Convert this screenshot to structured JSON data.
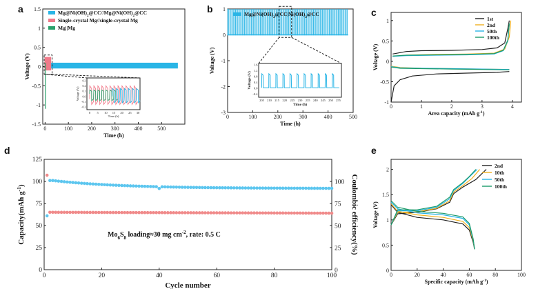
{
  "chart_data": [
    {
      "panel": "a",
      "type": "line",
      "xlabel": "Time (h)",
      "ylabel": "Voltage (V)",
      "xlim": [
        -10,
        600
      ],
      "ylim": [
        -1.5,
        1.5
      ],
      "xticks": [
        0,
        100,
        200,
        300,
        400,
        500
      ],
      "yticks": [
        -1.5,
        -1.0,
        -0.5,
        0.0,
        0.5,
        1.0,
        1.5
      ],
      "series": [
        {
          "name": "Mg@Ni(OH)2@CC//Mg@Ni(OH)2@CC",
          "color": "#29b5e6",
          "x_range": [
            0,
            570
          ],
          "voltage_band": [
            -0.05,
            0.1
          ]
        },
        {
          "name": "Single-crystal Mg//single-crystal Mg",
          "color": "#f07a8a",
          "x_range": [
            0,
            25
          ],
          "voltage_band": [
            -0.1,
            0.25
          ]
        },
        {
          "name": "Mg||Mg",
          "color": "#2aa06a",
          "x_range": [
            0,
            4
          ],
          "voltage_band": [
            -1.1,
            0.1
          ]
        }
      ],
      "inset": {
        "xlabel": "Time (h)",
        "ylabel": "Voltage (V)",
        "xticks": [
          0,
          5,
          10,
          15,
          20,
          25,
          30
        ],
        "yticks": [
          -0.2,
          -0.1,
          0.0,
          0.1,
          0.2,
          0.3
        ]
      }
    },
    {
      "panel": "b",
      "type": "line",
      "xlabel": "Time (h)",
      "ylabel": "Voltage (V)",
      "xlim": [
        0,
        500
      ],
      "ylim": [
        -3,
        1
      ],
      "xticks": [
        0,
        100,
        200,
        300,
        400,
        500
      ],
      "yticks": [
        -3,
        -2,
        -1,
        0,
        1
      ],
      "series": [
        {
          "name": "Mg@Ni(OH)2@CC|Ni(OH)2@CC",
          "color": "#29b5e6",
          "x_range": [
            0,
            480
          ],
          "voltage_band": [
            0.0,
            1.0
          ]
        }
      ],
      "inset": {
        "xlabel": "Time (h)",
        "ylabel": "Voltage (V)",
        "xticks": [
          205,
          210,
          215,
          220,
          225,
          230,
          235,
          240,
          245,
          250,
          255
        ],
        "yticks": [
          -0.4,
          0.0,
          0.4,
          0.8,
          1.2,
          1.6
        ]
      }
    },
    {
      "panel": "c",
      "type": "line",
      "xlabel": "Area capacity (mAh g⁻¹)",
      "ylabel": "Voltage (V)",
      "xlim": [
        0,
        4.3
      ],
      "ylim": [
        -1,
        1.2
      ],
      "xticks": [
        0,
        1,
        2,
        3,
        4
      ],
      "yticks": [
        -1.0,
        -0.5,
        0.0,
        0.5,
        1.0
      ],
      "series": [
        {
          "name": "1st",
          "color": "#222222",
          "charge": [
            [
              0.05,
              0.18
            ],
            [
              0.5,
              0.24
            ],
            [
              1,
              0.26
            ],
            [
              2,
              0.27
            ],
            [
              3,
              0.29
            ],
            [
              3.5,
              0.33
            ],
            [
              3.75,
              0.45
            ],
            [
              3.85,
              0.8
            ],
            [
              3.9,
              1.0
            ]
          ],
          "discharge": [
            [
              0,
              -1.0
            ],
            [
              0.1,
              -0.6
            ],
            [
              0.3,
              -0.45
            ],
            [
              0.7,
              -0.36
            ],
            [
              1.5,
              -0.31
            ],
            [
              2.5,
              -0.29
            ],
            [
              3.5,
              -0.27
            ],
            [
              3.9,
              -0.25
            ]
          ]
        },
        {
          "name": "2nd",
          "color": "#f0b01e",
          "charge": [
            [
              0.05,
              0.12
            ],
            [
              0.5,
              0.15
            ],
            [
              1.5,
              0.17
            ],
            [
              2.5,
              0.18
            ],
            [
              3.4,
              0.2
            ],
            [
              3.75,
              0.3
            ],
            [
              3.9,
              0.6
            ],
            [
              3.95,
              1.0
            ]
          ],
          "discharge": [
            [
              0,
              -0.12
            ],
            [
              0.3,
              -0.15
            ],
            [
              1,
              -0.17
            ],
            [
              2,
              -0.18
            ],
            [
              3,
              -0.19
            ],
            [
              3.9,
              -0.2
            ]
          ]
        },
        {
          "name": "50th",
          "color": "#29b5e6",
          "charge": [
            [
              0.05,
              0.12
            ],
            [
              0.5,
              0.14
            ],
            [
              1.5,
              0.15
            ],
            [
              2.5,
              0.16
            ],
            [
              3.4,
              0.18
            ],
            [
              3.7,
              0.26
            ],
            [
              3.85,
              0.5
            ],
            [
              3.9,
              0.92
            ]
          ],
          "discharge": [
            [
              0,
              -0.13
            ],
            [
              0.3,
              -0.16
            ],
            [
              1,
              -0.17
            ],
            [
              2,
              -0.18
            ],
            [
              3,
              -0.19
            ],
            [
              3.9,
              -0.2
            ]
          ]
        },
        {
          "name": "100th",
          "color": "#1a9a6a",
          "charge": [
            [
              0.05,
              0.13
            ],
            [
              0.5,
              0.15
            ],
            [
              1.5,
              0.16
            ],
            [
              2.5,
              0.17
            ],
            [
              3.4,
              0.19
            ],
            [
              3.7,
              0.27
            ],
            [
              3.85,
              0.52
            ],
            [
              3.9,
              0.93
            ]
          ],
          "discharge": [
            [
              0,
              -0.14
            ],
            [
              0.3,
              -0.17
            ],
            [
              1,
              -0.18
            ],
            [
              2,
              -0.19
            ],
            [
              3,
              -0.2
            ],
            [
              3.9,
              -0.21
            ]
          ]
        }
      ]
    },
    {
      "panel": "d",
      "type": "scatter",
      "xlabel": "Cycle number",
      "ylabel": "Capacity(mAh g⁻¹)",
      "y2label": "Coulombic efficiency(%)",
      "xlim": [
        0,
        100
      ],
      "ylim": [
        0,
        125
      ],
      "y2lim": [
        0,
        125
      ],
      "xticks": [
        0,
        20,
        40,
        60,
        80,
        100
      ],
      "yticks": [
        0,
        25,
        50,
        75,
        100,
        125
      ],
      "y2ticks": [
        0,
        25,
        50,
        75,
        100
      ],
      "annotation": "Mo6S8 loading≈30 mg cm⁻², rate: 0.5 C",
      "series": [
        {
          "name": "Capacity",
          "axis": "left",
          "color": "#f08a8a",
          "first_points": [
            [
              1,
              107
            ],
            [
              2,
              65
            ]
          ],
          "start": 65,
          "end": 64
        },
        {
          "name": "Coulombic efficiency",
          "axis": "right",
          "color": "#5cc6ef",
          "first_points": [
            [
              1,
              61
            ],
            [
              2,
              101
            ]
          ],
          "start": 101,
          "end": 92
        }
      ]
    },
    {
      "panel": "e",
      "type": "line",
      "xlabel": "Specific capacity (mAh g⁻¹)",
      "ylabel": "Voltage (V)",
      "xlim": [
        0,
        100
      ],
      "ylim": [
        0,
        2.2
      ],
      "xticks": [
        0,
        20,
        40,
        60,
        80,
        100
      ],
      "yticks": [
        0.0,
        0.5,
        1.0,
        1.5,
        2.0
      ],
      "series": [
        {
          "name": "2nd",
          "color": "#222222",
          "charge": [
            [
              0,
              0.9
            ],
            [
              5,
              1.12
            ],
            [
              20,
              1.15
            ],
            [
              35,
              1.22
            ],
            [
              45,
              1.35
            ],
            [
              48,
              1.52
            ],
            [
              55,
              1.65
            ],
            [
              65,
              1.8
            ],
            [
              73,
              2.0
            ]
          ],
          "discharge": [
            [
              0,
              1.3
            ],
            [
              5,
              1.15
            ],
            [
              20,
              1.05
            ],
            [
              40,
              1.0
            ],
            [
              55,
              0.92
            ],
            [
              60,
              0.8
            ],
            [
              63,
              0.55
            ],
            [
              64,
              0.42
            ]
          ]
        },
        {
          "name": "10th",
          "color": "#f0b01e",
          "charge": [
            [
              0,
              0.9
            ],
            [
              5,
              1.15
            ],
            [
              20,
              1.16
            ],
            [
              35,
              1.23
            ],
            [
              45,
              1.38
            ],
            [
              48,
              1.55
            ],
            [
              55,
              1.68
            ],
            [
              62,
              1.82
            ],
            [
              68,
              2.0
            ]
          ],
          "discharge": [
            [
              0,
              1.32
            ],
            [
              5,
              1.17
            ],
            [
              20,
              1.1
            ],
            [
              40,
              1.05
            ],
            [
              55,
              0.97
            ],
            [
              60,
              0.85
            ],
            [
              63,
              0.58
            ],
            [
              64,
              0.42
            ]
          ]
        },
        {
          "name": "50th",
          "color": "#29b5e6",
          "charge": [
            [
              0,
              0.9
            ],
            [
              5,
              1.18
            ],
            [
              20,
              1.18
            ],
            [
              35,
              1.25
            ],
            [
              45,
              1.42
            ],
            [
              48,
              1.58
            ],
            [
              55,
              1.72
            ],
            [
              60,
              1.85
            ],
            [
              66,
              2.0
            ]
          ],
          "discharge": [
            [
              0,
              1.35
            ],
            [
              5,
              1.22
            ],
            [
              20,
              1.14
            ],
            [
              40,
              1.1
            ],
            [
              55,
              1.03
            ],
            [
              60,
              0.9
            ],
            [
              63,
              0.6
            ],
            [
              64,
              0.42
            ]
          ]
        },
        {
          "name": "100th",
          "color": "#1a9a6a",
          "charge": [
            [
              0,
              0.9
            ],
            [
              5,
              1.2
            ],
            [
              20,
              1.2
            ],
            [
              35,
              1.27
            ],
            [
              45,
              1.45
            ],
            [
              48,
              1.6
            ],
            [
              55,
              1.74
            ],
            [
              60,
              1.86
            ],
            [
              65,
              2.0
            ]
          ],
          "discharge": [
            [
              0,
              1.38
            ],
            [
              5,
              1.25
            ],
            [
              20,
              1.17
            ],
            [
              40,
              1.13
            ],
            [
              55,
              1.06
            ],
            [
              60,
              0.93
            ],
            [
              63,
              0.62
            ],
            [
              64,
              0.42
            ]
          ]
        }
      ]
    }
  ],
  "panel_labels": {
    "a": "a",
    "b": "b",
    "c": "c",
    "d": "d",
    "e": "e"
  }
}
